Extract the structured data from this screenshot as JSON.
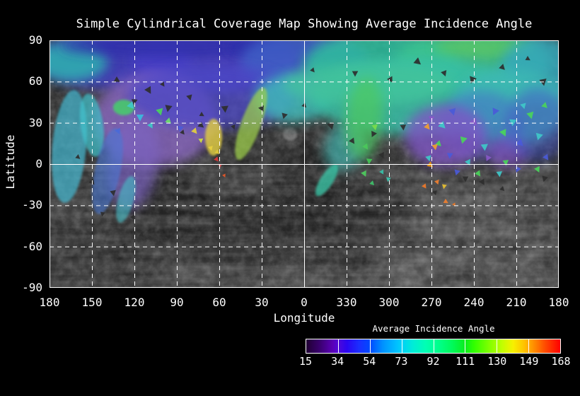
{
  "title": "Simple Cylindrical Coverage Map Showing Average Incidence Angle",
  "axes": {
    "xlabel": "Longitude",
    "ylabel": "Latitude",
    "x_ticks": [
      "180",
      "150",
      "120",
      "90",
      "60",
      "30",
      "0",
      "330",
      "300",
      "270",
      "240",
      "210",
      "180"
    ],
    "y_ticks": [
      "90",
      "60",
      "30",
      "0",
      "-30",
      "-60",
      "-90"
    ]
  },
  "colorbar": {
    "title": "Average Incidence Angle",
    "ticks": [
      "15",
      "34",
      "54",
      "73",
      "92",
      "111",
      "130",
      "149",
      "168"
    ],
    "segments": 8,
    "gradient": [
      [
        0,
        "#200033"
      ],
      [
        0.05,
        "#38006b"
      ],
      [
        0.105,
        "#5a00b8"
      ],
      [
        0.125,
        "#5008d8"
      ],
      [
        0.16,
        "#2a06f0"
      ],
      [
        0.21,
        "#1a30ff"
      ],
      [
        0.25,
        "#0048ff"
      ],
      [
        0.3,
        "#0090ff"
      ],
      [
        0.355,
        "#00c0ff"
      ],
      [
        0.375,
        "#00d0f8"
      ],
      [
        0.42,
        "#00ecd8"
      ],
      [
        0.47,
        "#00ffb4"
      ],
      [
        0.52,
        "#00ff8c"
      ],
      [
        0.575,
        "#00fa5a"
      ],
      [
        0.625,
        "#0aee1e"
      ],
      [
        0.66,
        "#30ff00"
      ],
      [
        0.72,
        "#80ff00"
      ],
      [
        0.77,
        "#c0ff00"
      ],
      [
        0.815,
        "#f8f000"
      ],
      [
        0.86,
        "#ffc000"
      ],
      [
        0.9,
        "#ff8800"
      ],
      [
        0.94,
        "#ff4c00"
      ],
      [
        1,
        "#ff0000"
      ]
    ]
  },
  "chart_data": {
    "type": "heatmap",
    "title": "Simple Cylindrical Coverage Map Showing Average Incidence Angle",
    "xlabel": "Longitude",
    "ylabel": "Latitude",
    "x_ticks": [
      180,
      150,
      120,
      90,
      60,
      30,
      0,
      330,
      300,
      270,
      240,
      210,
      180
    ],
    "y_ticks": [
      90,
      60,
      30,
      0,
      -30,
      -60,
      -90
    ],
    "xlim_note": "longitude runs 180 -> 0 -> 330 ... -> 180 (wraps through 0/360)",
    "ylim": [
      -90,
      90
    ],
    "grid": {
      "lon_step_deg": 30,
      "lat_step_deg": 30,
      "style": "white dashed gridlines; equator (lat 0) and prime meridian (lon 0) drawn solid; solid white frame"
    },
    "basemap": "grayscale simple-cylindrical mosaic of a planetary surface (uncovered areas)",
    "colorbar": {
      "label": "Average Incidence Angle",
      "min": 15,
      "max": 168,
      "tick_values": [
        15,
        34,
        54,
        73,
        92,
        111,
        130,
        149,
        168
      ],
      "palette": "rainbow: dark purple -> violet -> blue -> cyan -> spring green -> green -> yellow-green -> yellow -> orange -> red"
    },
    "coverage_summary": [
      "Coverage is concentrated in the northern hemisphere, roughly lat 0..90 deg, mostly incidence 15-92 deg (purple/blue/cyan/teal/green)",
      "Lat 60-90 band: blue-violet on western half (lon 180-30), teal/green on eastern half (lon 0-180 wrap), small green patch near lon 300",
      "Lon 180-150, lat -25..60: streaky cyan/blue coverage fingers extending south of the equator",
      "Lon 135-90, lat -5..55: large muted purple/lavender patch (low incidence) wrapping around an uncovered gray mound",
      "Lon 70-55, lat 5..30: small yellow patches (~120-140 deg) with tiny red specks (~160 deg) near the equator",
      "Lon 55-25, lat 10..45: diagonal yellow-green streak",
      "Lon 30-300, lat 30..90: broad teal/cyan-green coverage reaching down to ~lat 10",
      "Lon 335-320, lat 5..45: bright green streak with scattered dark facet holes",
      "Lon 290-255, lat 0..35: saturated purple patch plus orange/yellow facets and a dense mosaic of small cyan/blue/green triangular facets",
      "Lon 250-185, lat 25..90: continuous teal/cyan coverage to the right edge",
      "Small teal streak just south of the equator near lon 345, lat -5..-15",
      "Southern hemisphere below ~lat -10: uncovered grayscale terrain only",
      "Scattered small dark triangular gaps (unimaged facets) along the coverage boundary"
    ]
  },
  "map": {
    "terrain": [
      [
        250,
        215,
        160,
        100,
        0,
        "#2c2c2c",
        0.8,
        "b8"
      ],
      [
        420,
        255,
        100,
        65,
        0,
        "#2a2a2a",
        0.7,
        "b8"
      ],
      [
        55,
        305,
        95,
        55,
        0,
        "#303030",
        0.7,
        "b8"
      ],
      [
        590,
        300,
        140,
        75,
        -5,
        "#5e5e5e",
        0.55,
        "b8"
      ],
      [
        260,
        150,
        90,
        70,
        0,
        "#565656",
        0.5,
        "b8"
      ],
      [
        700,
        130,
        55,
        45,
        0,
        "#383838",
        0.55,
        "b8"
      ],
      [
        120,
        330,
        70,
        28,
        -8,
        "#3a3a3a",
        0.6,
        "b8"
      ],
      [
        340,
        133,
        10,
        9,
        0,
        "#8a8a8a",
        0.85,
        "b2"
      ],
      [
        520,
        322,
        70,
        18,
        -12,
        "#6f6f6f",
        0.5,
        "b4"
      ],
      [
        660,
        320,
        40,
        13,
        -10,
        "#707070",
        0.5,
        "b4"
      ],
      [
        40,
        180,
        50,
        40,
        0,
        "#3a3a3a",
        0.55,
        "b8"
      ],
      [
        480,
        92,
        60,
        28,
        0,
        "#525252",
        0.4,
        "b8"
      ],
      [
        205,
        330,
        55,
        16,
        -6,
        "#606060",
        0.45,
        "b4"
      ]
    ],
    "blobs": [
      [
        90,
        28,
        110,
        42,
        0,
        "#3f3ec2",
        0.85,
        "b8"
      ],
      [
        30,
        30,
        52,
        28,
        0,
        "#2fb3b0",
        0.85,
        "b8"
      ],
      [
        235,
        30,
        120,
        45,
        0,
        "#4a40c8",
        0.85,
        "b8"
      ],
      [
        175,
        8,
        160,
        16,
        0,
        "#2f2faa",
        0.8,
        "b8"
      ],
      [
        320,
        10,
        70,
        14,
        0,
        "#2a2ea8",
        0.75,
        "b8"
      ],
      [
        360,
        32,
        90,
        46,
        0,
        "#3f62c8",
        0.8,
        "b8"
      ],
      [
        470,
        35,
        110,
        48,
        0,
        "#2fbf9f",
        0.85,
        "b8"
      ],
      [
        600,
        30,
        110,
        44,
        0,
        "#3cc490",
        0.85,
        "b8"
      ],
      [
        615,
        10,
        70,
        15,
        0,
        "#5ecb62",
        0.7,
        "b8"
      ],
      [
        695,
        42,
        58,
        48,
        0,
        "#35a8bc",
        0.85,
        "b8"
      ],
      [
        150,
        112,
        88,
        66,
        0,
        "#8a68c2",
        0.8,
        "b8"
      ],
      [
        230,
        80,
        120,
        46,
        0,
        "#4c46c6",
        0.75,
        "b8"
      ],
      [
        118,
        172,
        36,
        68,
        8,
        "#7a62c0",
        0.7,
        "b8"
      ],
      [
        345,
        82,
        55,
        34,
        0,
        "#3fbfbc",
        0.8,
        "b8"
      ],
      [
        418,
        150,
        28,
        36,
        25,
        "#3fb9b4",
        0.65,
        "b8"
      ],
      [
        520,
        80,
        150,
        55,
        0,
        "#38bfa6",
        0.85,
        "b8"
      ],
      [
        650,
        95,
        82,
        55,
        0,
        "#3cb8b4",
        0.85,
        "b8"
      ],
      [
        610,
        120,
        60,
        48,
        0,
        "#4a5ed0",
        0.45,
        "b8"
      ],
      [
        560,
        135,
        58,
        44,
        0,
        "#7e55c4",
        0.8,
        "b8"
      ],
      [
        648,
        158,
        30,
        22,
        0,
        "#7a50bc",
        0.75,
        "b8"
      ],
      [
        690,
        120,
        45,
        52,
        0,
        "#4656cc",
        0.5,
        "b8"
      ],
      [
        450,
        62,
        120,
        30,
        0,
        "#44c49a",
        0.7,
        "b8"
      ],
      [
        445,
        110,
        26,
        58,
        5,
        "#4ec95e",
        0.7,
        "b8"
      ],
      [
        28,
        150,
        24,
        80,
        5,
        "#44b9d2",
        0.7,
        "b2"
      ],
      [
        60,
        120,
        16,
        45,
        -8,
        "#3fc3cc",
        0.7,
        "b2"
      ],
      [
        82,
        185,
        18,
        62,
        12,
        "#4a78d4",
        0.6,
        "b2"
      ],
      [
        108,
        225,
        11,
        34,
        15,
        "#45c0c8",
        0.6,
        "b2"
      ],
      [
        285,
        118,
        14,
        54,
        20,
        "#9fd24a",
        0.7,
        "b2"
      ],
      [
        232,
        137,
        12,
        26,
        0,
        "#e3cf3f",
        0.8,
        "b2"
      ],
      [
        392,
        198,
        9,
        26,
        33,
        "#38c8a8",
        0.75,
        "b2"
      ],
      [
        105,
        95,
        15,
        11,
        0,
        "#44d06a",
        0.85,
        "b2"
      ]
    ],
    "facets": [
      [
        520,
        30,
        6,
        10
      ],
      [
        558,
        46,
        5,
        40
      ],
      [
        598,
        55,
        6,
        80
      ],
      [
        640,
        38,
        5,
        15
      ],
      [
        698,
        58,
        6,
        50
      ],
      [
        676,
        26,
        4,
        0
      ],
      [
        482,
        55,
        5,
        30
      ],
      [
        432,
        46,
        5,
        60
      ],
      [
        372,
        42,
        4,
        20
      ],
      [
        95,
        56,
        5,
        0
      ],
      [
        140,
        70,
        6,
        30
      ],
      [
        168,
        95,
        6,
        70
      ],
      [
        198,
        80,
        5,
        45
      ],
      [
        214,
        120,
        5,
        10
      ],
      [
        248,
        96,
        6,
        55
      ],
      [
        160,
        62,
        4,
        25
      ],
      [
        120,
        86,
        5,
        65
      ],
      [
        300,
        96,
        5,
        35
      ],
      [
        332,
        106,
        5,
        75
      ],
      [
        360,
        92,
        4,
        15
      ],
      [
        398,
        120,
        6,
        45
      ],
      [
        428,
        142,
        5,
        25
      ],
      [
        458,
        132,
        5,
        85
      ],
      [
        470,
        162,
        5,
        35
      ],
      [
        500,
        122,
        5,
        55
      ],
      [
        215,
        105,
        4,
        0
      ],
      [
        260,
        122,
        4,
        40
      ],
      [
        188,
        130,
        4,
        20
      ],
      [
        612,
        200,
        5,
        30
      ],
      [
        588,
        195,
        5,
        60
      ],
      [
        640,
        210,
        4,
        15
      ],
      [
        700,
        195,
        5,
        75
      ],
      [
        545,
        215,
        4,
        45
      ],
      [
        60,
        200,
        5,
        20
      ],
      [
        90,
        215,
        5,
        50
      ],
      [
        40,
        165,
        4,
        10
      ],
      [
        118,
        250,
        4,
        30
      ],
      [
        75,
        245,
        4,
        70
      ],
      [
        130,
        275,
        4,
        15
      ],
      [
        105,
        290,
        4,
        40
      ],
      [
        115,
        92,
        6,
        20,
        "#3fc8c8"
      ],
      [
        128,
        108,
        6,
        60,
        "#38bce0"
      ],
      [
        143,
        120,
        5,
        30,
        "#3fc8c8"
      ],
      [
        156,
        100,
        6,
        45,
        "#4ad45a"
      ],
      [
        168,
        114,
        5,
        15,
        "#6ee06a"
      ],
      [
        185,
        124,
        5,
        70,
        "#4a5ad8"
      ],
      [
        97,
        128,
        5,
        35,
        "#4a6ad8"
      ],
      [
        205,
        128,
        5,
        20,
        "#e3cf3f"
      ],
      [
        214,
        141,
        4,
        55,
        "#cfe03f"
      ],
      [
        236,
        168,
        4,
        20,
        "#e03838"
      ],
      [
        241,
        177,
        3,
        60,
        "#dc4444"
      ],
      [
        247,
        191,
        3,
        35,
        "#e85828"
      ],
      [
        228,
        152,
        4,
        45,
        "#e8d040"
      ],
      [
        237,
        158,
        4,
        10,
        "#e0c838"
      ],
      [
        447,
        150,
        5,
        25,
        "#4ac85a"
      ],
      [
        452,
        170,
        5,
        65,
        "#44c454"
      ],
      [
        445,
        188,
        5,
        35,
        "#4ecc5e"
      ],
      [
        456,
        202,
        4,
        15,
        "#3fc06a"
      ],
      [
        460,
        122,
        5,
        50,
        "#7adc4a"
      ],
      [
        470,
        186,
        4,
        30,
        "#38c0a8"
      ],
      [
        479,
        196,
        4,
        70,
        "#3cc4ae"
      ],
      [
        555,
        120,
        6,
        15,
        "#3fc8c8"
      ],
      [
        570,
        100,
        6,
        45,
        "#4a5ad8"
      ],
      [
        585,
        140,
        6,
        75,
        "#4ad45a"
      ],
      [
        600,
        115,
        6,
        25,
        "#8858c8"
      ],
      [
        615,
        150,
        6,
        55,
        "#3fc8c8"
      ],
      [
        630,
        100,
        6,
        85,
        "#4a5ad8"
      ],
      [
        642,
        130,
        6,
        35,
        "#4ad45a"
      ],
      [
        655,
        115,
        6,
        65,
        "#3fc8c8"
      ],
      [
        665,
        145,
        6,
        15,
        "#4a5ad8"
      ],
      [
        680,
        105,
        6,
        45,
        "#4ad45a"
      ],
      [
        692,
        135,
        6,
        75,
        "#3fc8c8"
      ],
      [
        702,
        165,
        5,
        25,
        "#4a5ad8"
      ],
      [
        645,
        172,
        5,
        55,
        "#4ad45a"
      ],
      [
        620,
        166,
        5,
        85,
        "#8858c8"
      ],
      [
        592,
        172,
        5,
        35,
        "#3fc8c8"
      ],
      [
        566,
        162,
        5,
        65,
        "#4a5ad8"
      ],
      [
        550,
        146,
        5,
        15,
        "#4ad45a"
      ],
      [
        536,
        166,
        5,
        45,
        "#3fc8c8"
      ],
      [
        576,
        186,
        5,
        75,
        "#4a5ad8"
      ],
      [
        606,
        188,
        5,
        25,
        "#4ad45a"
      ],
      [
        636,
        188,
        5,
        55,
        "#3fc8c8"
      ],
      [
        662,
        182,
        5,
        85,
        "#4a5ad8"
      ],
      [
        690,
        182,
        5,
        35,
        "#4ad45a"
      ],
      [
        540,
        110,
        5,
        65,
        "#8858c8"
      ],
      [
        700,
        92,
        5,
        15,
        "#4ad45a"
      ],
      [
        670,
        92,
        5,
        45,
        "#3fc8c8"
      ],
      [
        534,
        122,
        5,
        20,
        "#f0a030"
      ],
      [
        545,
        150,
        5,
        50,
        "#f0a030"
      ],
      [
        538,
        176,
        5,
        10,
        "#e8940a"
      ],
      [
        548,
        200,
        4,
        40,
        "#f08030"
      ],
      [
        558,
        206,
        4,
        70,
        "#e8c030"
      ],
      [
        530,
        206,
        4,
        25,
        "#f07828"
      ],
      [
        560,
        228,
        4,
        0,
        "#f08030"
      ],
      [
        572,
        232,
        3,
        30,
        "#e87828"
      ]
    ]
  }
}
